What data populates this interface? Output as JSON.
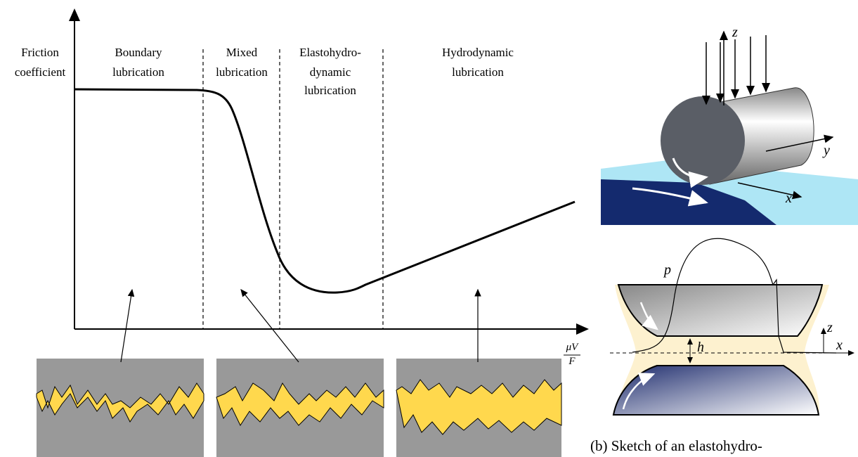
{
  "stribeck": {
    "y_axis_label": [
      "Friction",
      "coefficient"
    ],
    "x_axis_label": {
      "numerator": "μV",
      "denominator": "F"
    },
    "regions": [
      {
        "label": [
          "Boundary",
          "lubrication"
        ]
      },
      {
        "label": [
          "Mixed",
          "lubrication"
        ]
      },
      {
        "label": [
          "Elastohydro-",
          "dynamic",
          "lubrication"
        ]
      },
      {
        "label": [
          "Hydrodynamic",
          "lubrication"
        ]
      }
    ]
  },
  "cylinder": {
    "axes": [
      "z",
      "y",
      "x"
    ]
  },
  "ehd_sketch": {
    "pressure": "p",
    "gap": "h",
    "axes": [
      "z",
      "x"
    ]
  },
  "caption": "(b) Sketch of an elastohydro-"
}
